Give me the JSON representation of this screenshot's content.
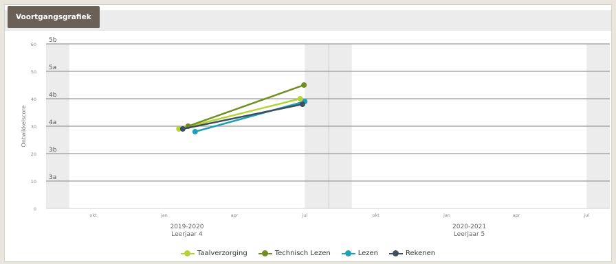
{
  "page": {
    "title": "Voortgangsgrafiek"
  },
  "colors": {
    "Taalverzorging": "#b5d334",
    "Technisch Lezen": "#6e8f1e",
    "Lezen": "#1fa0b5",
    "Rekenen": "#3d4f5f"
  },
  "chart_data": {
    "type": "line",
    "title": "",
    "ylabel": "Ontwikkelscore",
    "xlabel": "",
    "ylim": [
      0,
      60
    ],
    "y_ticks": [
      0,
      10,
      20,
      30,
      40,
      50,
      60
    ],
    "level_bands": [
      {
        "label": "3a",
        "value": 10
      },
      {
        "label": "3b",
        "value": 20
      },
      {
        "label": "4a",
        "value": 30
      },
      {
        "label": "4b",
        "value": 40
      },
      {
        "label": "5a",
        "value": 50
      },
      {
        "label": "5b",
        "value": 60
      }
    ],
    "x_range": [
      "2019-08-01",
      "2021-07-31"
    ],
    "x_ticks": [
      {
        "label": "okt",
        "date": "2019-10-01"
      },
      {
        "label": "jan",
        "date": "2020-01-01"
      },
      {
        "label": "apr",
        "date": "2020-04-01"
      },
      {
        "label": "jul",
        "date": "2020-07-01"
      },
      {
        "label": "okt",
        "date": "2020-10-01"
      },
      {
        "label": "jan",
        "date": "2021-01-01"
      },
      {
        "label": "apr",
        "date": "2021-04-01"
      },
      {
        "label": "jul",
        "date": "2021-07-01"
      }
    ],
    "school_years": [
      {
        "line1": "2019-2020",
        "line2": "Leerjaar 4",
        "start": "2019-08-01",
        "end": "2020-07-31"
      },
      {
        "line1": "2020-2021",
        "line2": "Leerjaar 5",
        "start": "2020-08-01",
        "end": "2021-07-31"
      }
    ],
    "shaded_periods": [
      {
        "start": "2019-08-01",
        "end": "2019-08-31"
      },
      {
        "start": "2020-07-01",
        "end": "2020-08-31"
      },
      {
        "start": "2021-07-01",
        "end": "2021-07-31"
      }
    ],
    "grid": true,
    "legend_position": "bottom",
    "series": [
      {
        "name": "Taalverzorging",
        "x": [
          "2020-01-20",
          "2020-06-25"
        ],
        "y": [
          29,
          40
        ]
      },
      {
        "name": "Technisch Lezen",
        "x": [
          "2020-02-01",
          "2020-06-30"
        ],
        "y": [
          30,
          45
        ]
      },
      {
        "name": "Lezen",
        "x": [
          "2020-02-10",
          "2020-07-01"
        ],
        "y": [
          28,
          39
        ]
      },
      {
        "name": "Rekenen",
        "x": [
          "2020-01-25",
          "2020-06-28"
        ],
        "y": [
          29,
          38
        ]
      }
    ]
  }
}
